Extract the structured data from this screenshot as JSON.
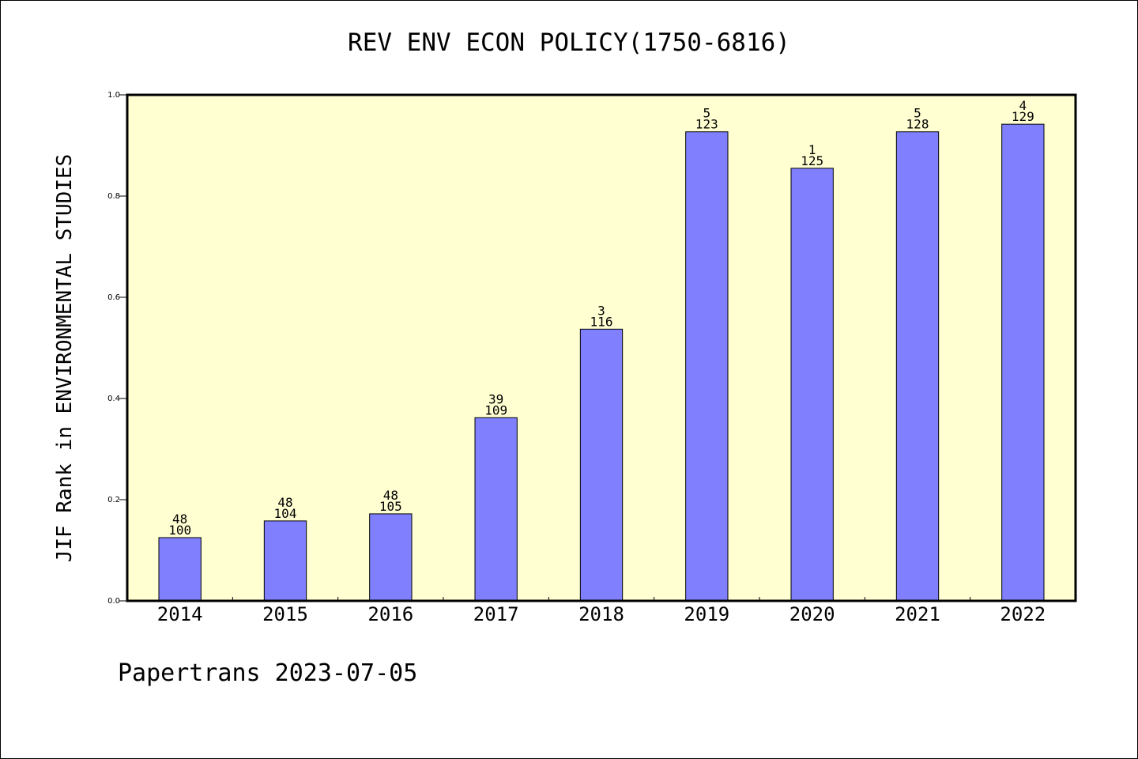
{
  "title": "REV ENV ECON POLICY(1750-6816)",
  "footer": "Papertrans 2023-07-05",
  "colors": {
    "plot_background": "#ffffd2",
    "bar_fill": "#8080ff",
    "bar_stroke": "#000000"
  },
  "chart_data": {
    "type": "bar",
    "title": "REV ENV ECON POLICY(1750-6816)",
    "xlabel": "",
    "ylabel": "JIF Rank in ENVIRONMENTAL STUDIES",
    "ylim": [
      0,
      1
    ],
    "yticks": [
      "0.0",
      "0.2",
      "0.4",
      "0.6",
      "0.8",
      "1.0"
    ],
    "categories": [
      "2014",
      "2015",
      "2016",
      "2017",
      "2018",
      "2019",
      "2020",
      "2021",
      "2022"
    ],
    "values": [
      0.125,
      0.158,
      0.172,
      0.362,
      0.537,
      0.927,
      0.855,
      0.927,
      0.942
    ],
    "rank_labels": [
      "48",
      "48",
      "48",
      "39",
      "3",
      "5",
      "1",
      "5",
      "4"
    ],
    "total_labels": [
      "100",
      "104",
      "105",
      "109",
      "116",
      "123",
      "125",
      "128",
      "129"
    ],
    "grid": false
  }
}
